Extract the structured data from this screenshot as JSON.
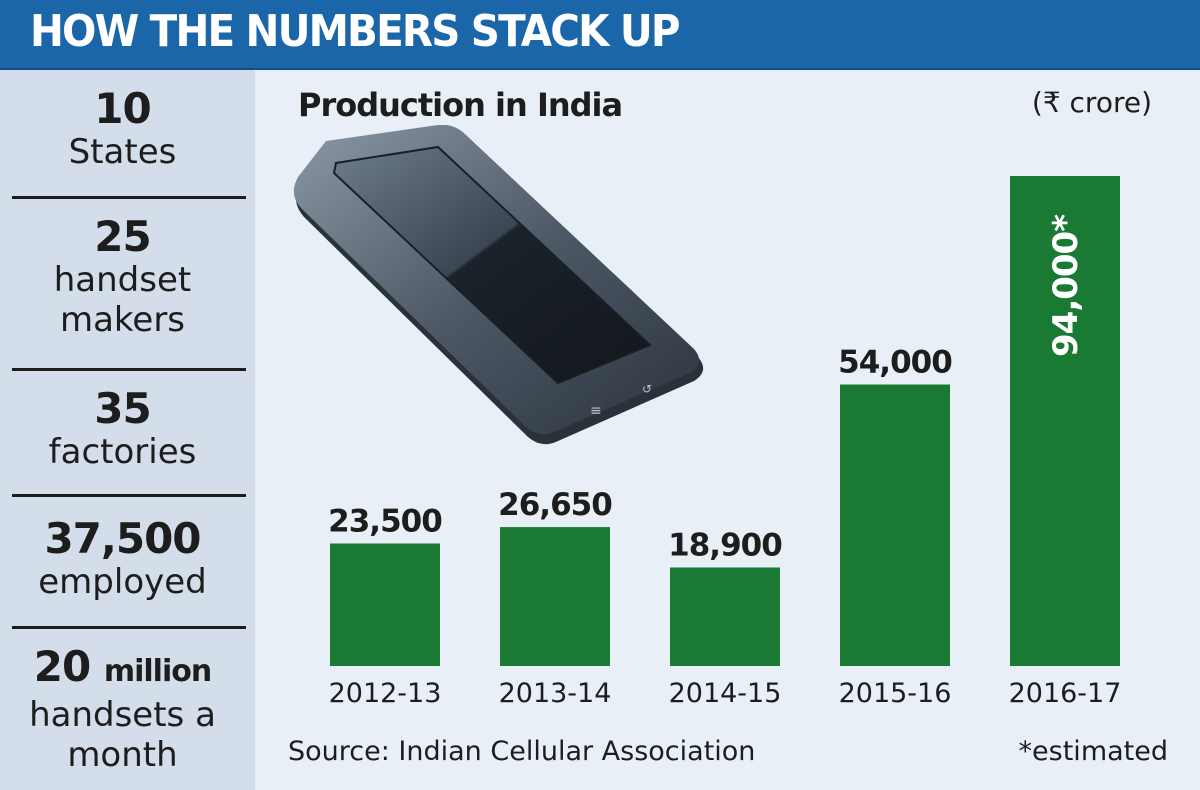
{
  "header": {
    "title": "HOW THE NUMBERS STACK UP"
  },
  "stats": [
    {
      "value": "10",
      "unit": "",
      "label_lines": [
        "States"
      ]
    },
    {
      "value": "25",
      "unit": "",
      "label_lines": [
        "handset",
        "makers"
      ]
    },
    {
      "value": "35",
      "unit": "",
      "label_lines": [
        "factories"
      ]
    },
    {
      "value": "37,500",
      "unit": "",
      "label_lines": [
        "employed"
      ]
    },
    {
      "value": "20",
      "unit": "million",
      "label_lines": [
        "handsets a",
        "month"
      ]
    }
  ],
  "chart_data": {
    "type": "bar",
    "title": "Production in India",
    "unit_label": "(₹ crore)",
    "categories": [
      "2012-13",
      "2013-14",
      "2014-15",
      "2015-16",
      "2016-17"
    ],
    "values": [
      23500,
      26650,
      18900,
      54000,
      94000
    ],
    "value_labels": [
      "23,500",
      "26,650",
      "18,900",
      "54,000",
      "94,000*"
    ],
    "estimated_flags": [
      false,
      false,
      false,
      false,
      true
    ],
    "ylim": [
      0,
      94000
    ],
    "bar_color": "#1a7a34",
    "grid": false,
    "legend": "none"
  },
  "footer": {
    "source": "Source: Indian Cellular Association",
    "note": "*estimated"
  },
  "illustration": {
    "icon": "smartphone-icon"
  }
}
